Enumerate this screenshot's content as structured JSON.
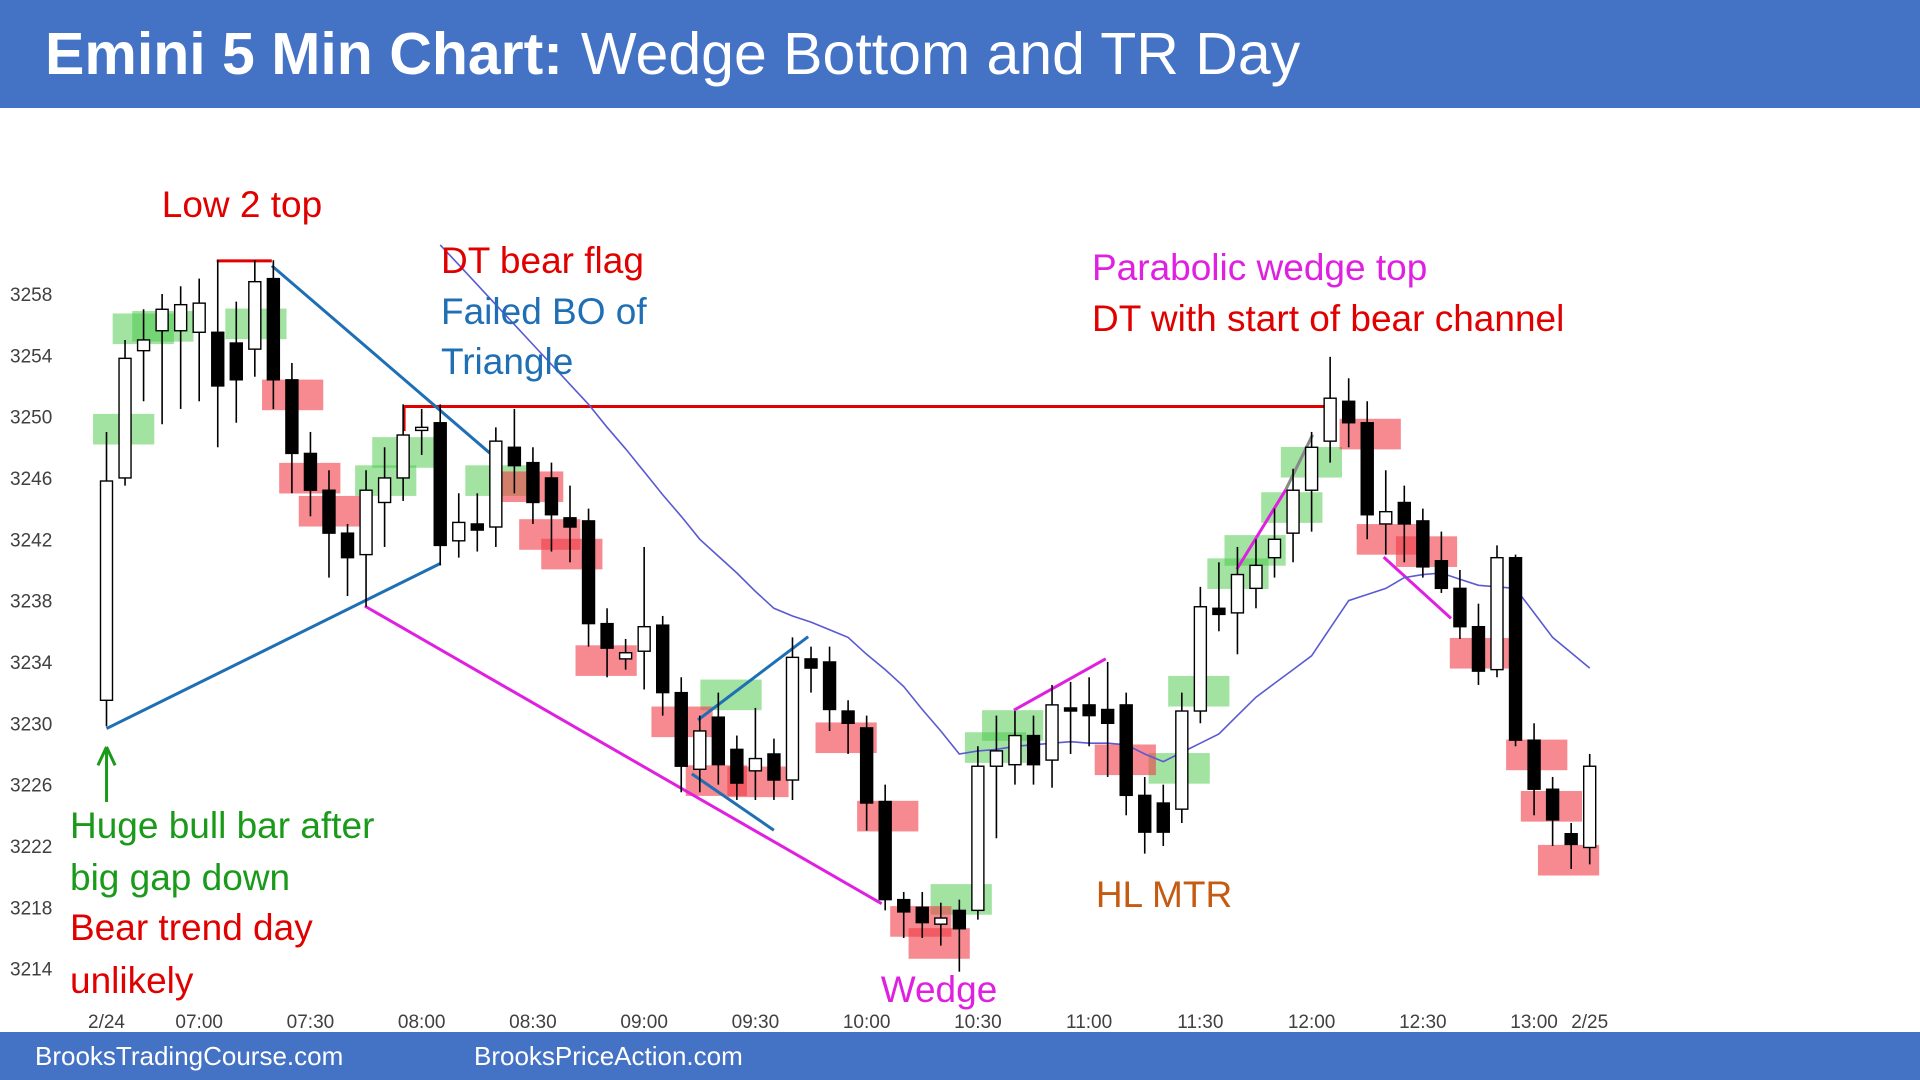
{
  "chart_data": {
    "type": "candlestick",
    "title": "Emini 5 Min Chart:",
    "subtitle": "Wedge Bottom and TR Day",
    "categories": [
      "2/24",
      null,
      null,
      null,
      null,
      "07:00",
      null,
      null,
      null,
      null,
      null,
      "07:30",
      null,
      null,
      null,
      null,
      null,
      "08:00",
      null,
      null,
      null,
      null,
      null,
      "08:30",
      null,
      null,
      null,
      null,
      null,
      "09:00",
      null,
      null,
      null,
      null,
      null,
      "09:30",
      null,
      null,
      null,
      null,
      null,
      "10:00",
      null,
      null,
      null,
      null,
      null,
      "10:30",
      null,
      null,
      null,
      null,
      null,
      "11:00",
      null,
      null,
      null,
      null,
      null,
      "11:30",
      null,
      null,
      null,
      null,
      null,
      "12:00",
      null,
      null,
      null,
      null,
      null,
      "12:30",
      null,
      null,
      null,
      null,
      null,
      "13:00",
      null,
      null,
      "2/25"
    ],
    "open": [
      3231.5,
      3246,
      3254.3,
      3255.6,
      3255.6,
      3255.5,
      3255.5,
      3254.8,
      3254.4,
      3259,
      3252.4,
      3247.6,
      3245.2,
      3242.4,
      3241,
      3244.4,
      3246,
      3249.1,
      3249.6,
      3241.9,
      3243,
      3242.8,
      3248,
      3247,
      3246,
      3243.4,
      3243.2,
      3236.5,
      3234.2,
      3234.7,
      3236.4,
      3232,
      3227,
      3230.4,
      3228.3,
      3226.9,
      3228,
      3226.3,
      3234.2,
      3234,
      3230.8,
      3229.7,
      3224.9,
      3218.5,
      3218,
      3216.9,
      3217.8,
      3217.8,
      3227.2,
      3227.3,
      3229.2,
      3227.6,
      3231,
      3231.2,
      3230.9,
      3231.2,
      3225.3,
      3224.8,
      3224.4,
      3230.8,
      3237.5,
      3237.2,
      3238.8,
      3240.8,
      3242.4,
      3245.2,
      3248.4,
      3251,
      3249.6,
      3243,
      3244.4,
      3243.2,
      3240.6,
      3238.8,
      3236.3,
      3233.5,
      3240.8,
      3228.9,
      3225.7,
      3222.8,
      3221.9
    ],
    "high": [
      3249,
      3255,
      3257,
      3258,
      3258.5,
      3259,
      3260.2,
      3257.5,
      3260.2,
      3260.2,
      3253.5,
      3249,
      3246.5,
      3243,
      3246.5,
      3248,
      3250.8,
      3250.5,
      3250.8,
      3245,
      3245,
      3249.3,
      3250.5,
      3248,
      3247,
      3245.5,
      3244,
      3237.5,
      3235.5,
      3241.5,
      3237,
      3233,
      3230.5,
      3232,
      3229.2,
      3231,
      3229,
      3235.6,
      3235,
      3235,
      3231.5,
      3230.5,
      3226,
      3219,
      3219,
      3218.3,
      3218.5,
      3228.5,
      3230.5,
      3230.8,
      3230.5,
      3232.5,
      3232.7,
      3233,
      3234,
      3232,
      3226.5,
      3226,
      3232,
      3238.9,
      3240.5,
      3241.5,
      3242,
      3244,
      3246.6,
      3249,
      3253.9,
      3252.5,
      3251,
      3246.5,
      3245.5,
      3244,
      3242.5,
      3240,
      3237.8,
      3241.6,
      3241,
      3230,
      3226.5,
      3223.5,
      3228
    ],
    "low": [
      3229.8,
      3245.5,
      3251,
      3249.5,
      3250.5,
      3251,
      3248,
      3249.6,
      3252.6,
      3250.5,
      3245,
      3243.5,
      3239.5,
      3238.3,
      3237.6,
      3241.5,
      3244.5,
      3247.5,
      3240.3,
      3240.8,
      3241.2,
      3241.5,
      3245,
      3243,
      3241.2,
      3240.5,
      3235,
      3233,
      3233.5,
      3232.2,
      3230.5,
      3225.5,
      3225.5,
      3226,
      3225,
      3225,
      3225,
      3225,
      3232,
      3229.5,
      3228,
      3223,
      3217.8,
      3216,
      3216,
      3215.5,
      3213.8,
      3217.2,
      3222.5,
      3226,
      3226,
      3225.8,
      3228,
      3228.5,
      3226.5,
      3224,
      3221.5,
      3222,
      3223.5,
      3230,
      3236,
      3234.5,
      3237.5,
      3239.5,
      3240.5,
      3242.5,
      3247,
      3248,
      3242,
      3241,
      3240.5,
      3239.5,
      3238.5,
      3235.5,
      3232.5,
      3233,
      3228.5,
      3224,
      3222,
      3220.5,
      3220.8
    ],
    "close": [
      3245.8,
      3253.8,
      3255,
      3257,
      3257.3,
      3257.4,
      3252,
      3252.4,
      3258.8,
      3252.4,
      3247.6,
      3245.2,
      3242.4,
      3240.8,
      3245.2,
      3246,
      3248.8,
      3249.3,
      3241.6,
      3243.1,
      3242.6,
      3248.4,
      3246.8,
      3244.4,
      3243.6,
      3242.8,
      3236.5,
      3234.9,
      3234.6,
      3236.3,
      3232,
      3227.2,
      3229.5,
      3227.3,
      3226.1,
      3227.7,
      3226.3,
      3234.3,
      3233.6,
      3230.9,
      3230,
      3224.8,
      3218.5,
      3217.7,
      3217,
      3217.3,
      3216.6,
      3227.2,
      3228.2,
      3229.2,
      3227.3,
      3231.2,
      3230.8,
      3230.5,
      3230,
      3225.3,
      3222.9,
      3222.9,
      3230.8,
      3237.6,
      3237.1,
      3239.7,
      3240.3,
      3242,
      3245.2,
      3248,
      3251.2,
      3249.6,
      3243.6,
      3243.8,
      3243,
      3240.2,
      3238.8,
      3236.3,
      3233.4,
      3240.8,
      3228.9,
      3225.7,
      3223.7,
      3222.1,
      3227.2
    ],
    "up_color": "#ffffff",
    "down_color": "#000000",
    "ema": {
      "color": "#5a5ad2",
      "values": [
        null,
        null,
        null,
        null,
        null,
        null,
        null,
        null,
        null,
        null,
        null,
        null,
        null,
        null,
        null,
        null,
        null,
        null,
        3261.2,
        3259.9,
        3258.6,
        3257.3,
        3256,
        3254.7,
        3253.4,
        3252.1,
        3250.8,
        3249.3,
        3247.9,
        3246.4,
        3244.9,
        3243.5,
        3242,
        3240.9,
        3239.8,
        3238.6,
        3237.5,
        3237,
        3236.6,
        3236.1,
        3235.6,
        3234.5,
        3233.5,
        3232.4,
        3230.9,
        3229.5,
        3228,
        3228.2,
        3228.3,
        3228.5,
        3228.6,
        3228.7,
        3228.8,
        3228.7,
        3228.7,
        3228.6,
        3228,
        3227.5,
        3228.1,
        3228.7,
        3229.3,
        3230.5,
        3231.7,
        3232.6,
        3233.5,
        3234.4,
        3236.2,
        3238,
        3238.4,
        3238.8,
        3239.5,
        3239.7,
        3239.8,
        3239.4,
        3239,
        3238.9,
        3238.8,
        3237.2,
        3235.6,
        3234.6,
        3233.6
      ]
    },
    "ylim": [
      3212,
      3268
    ],
    "yticks": [
      3214,
      3218,
      3222,
      3226,
      3230,
      3234,
      3238,
      3242,
      3246,
      3250,
      3254,
      3258
    ],
    "annotations": [
      "Low 2 top",
      "DT bear flag",
      "Failed BO of",
      "Triangle",
      "Parabolic wedge top",
      "DT with start of bear channel",
      "Huge bull bar after",
      "big gap down",
      "Bear trend day",
      "unlikely",
      "HL MTR",
      "Wedge"
    ]
  },
  "footer": [
    "BrooksTradingCourse.com",
    "BrooksPriceAction.com"
  ]
}
